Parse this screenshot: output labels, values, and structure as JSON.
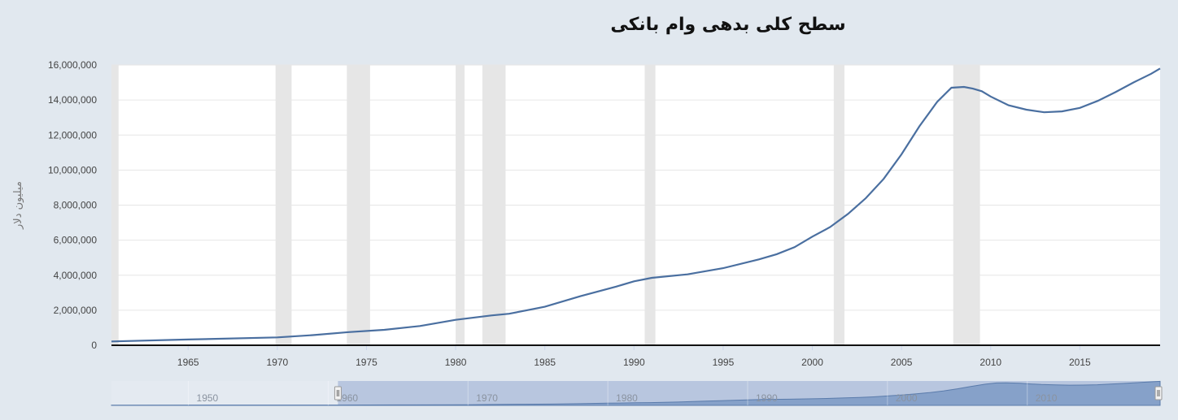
{
  "chart_data": {
    "type": "line",
    "title": "سطح کلی بدهی وام بانکی",
    "ylabel": "میلیون دلار",
    "xlim": [
      1960.7,
      2019.5
    ],
    "ylim": [
      0,
      16000000
    ],
    "x_ticks": [
      1965,
      1970,
      1975,
      1980,
      1985,
      1990,
      1995,
      2000,
      2005,
      2010,
      2015
    ],
    "y_ticks": [
      0,
      2000000,
      4000000,
      6000000,
      8000000,
      10000000,
      12000000,
      14000000,
      16000000
    ],
    "y_tick_labels": [
      "0",
      "2,000,000",
      "4,000,000",
      "6,000,000",
      "8,000,000",
      "10,000,000",
      "12,000,000",
      "14,000,000",
      "16,000,000"
    ],
    "grid": true,
    "series_color": "#4a6fa0",
    "recession_color": "#e6e6e6",
    "recessions": [
      [
        1960.3,
        1961.1
      ],
      [
        1969.9,
        1970.8
      ],
      [
        1973.9,
        1975.2
      ],
      [
        1980.0,
        1980.5
      ],
      [
        1981.5,
        1982.8
      ],
      [
        1990.6,
        1991.2
      ],
      [
        2001.2,
        2001.8
      ],
      [
        2007.9,
        2009.4
      ]
    ],
    "series": [
      {
        "x": [
          1960.7,
          1965,
          1970,
          1972,
          1974,
          1976,
          1978,
          1980,
          1982,
          1983,
          1985,
          1987,
          1989,
          1990,
          1991,
          1993,
          1995,
          1997,
          1998,
          1999,
          2000,
          2001,
          2002,
          2003,
          2004,
          2005,
          2006,
          2007,
          2007.8,
          2008.5,
          2009,
          2009.5,
          2010,
          2011,
          2012,
          2013,
          2014,
          2015,
          2016,
          2017,
          2018,
          2019,
          2019.5
        ],
        "values": [
          220000,
          330000,
          450000,
          580000,
          750000,
          880000,
          1100000,
          1450000,
          1700000,
          1800000,
          2200000,
          2800000,
          3350000,
          3650000,
          3850000,
          4050000,
          4400000,
          4900000,
          5200000,
          5600000,
          6200000,
          6750000,
          7500000,
          8400000,
          9500000,
          10900000,
          12500000,
          13900000,
          14700000,
          14750000,
          14650000,
          14500000,
          14200000,
          13700000,
          13450000,
          13300000,
          13350000,
          13550000,
          13950000,
          14450000,
          15000000,
          15500000,
          15800000
        ]
      }
    ],
    "navigator": {
      "x_ticks": [
        1950,
        1960,
        1970,
        1980,
        1990,
        2000,
        2010
      ],
      "xlim": [
        1944.5,
        2019.5
      ],
      "window": [
        1960.7,
        2019.5
      ]
    }
  }
}
